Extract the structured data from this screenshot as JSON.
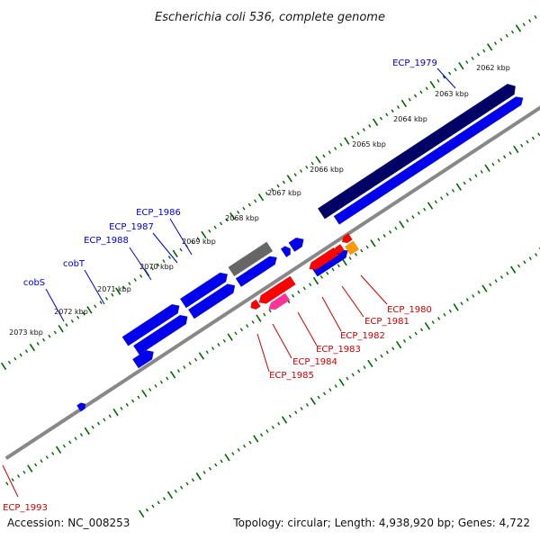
{
  "title": "Escherichia coli 536, complete genome",
  "footer": {
    "accession": "Accession: NC_008253",
    "summary": "Topology: circular; Length: 4,938,920 bp; Genes: 4,722"
  },
  "colors": {
    "forward_gene": "#0000ee",
    "forward_label": "#0000cc",
    "reverse_gene": "#ff0000",
    "reverse_label": "#cc0000",
    "rna_gene": "#ff3399",
    "pseudo_gene": "#ff9900",
    "dark_feature": "#000066",
    "grey_feature": "#666666",
    "backbone": "#888888",
    "tick": "#006600"
  },
  "scale_labels": [
    "2062 kbp",
    "2063 kbp",
    "2064 kbp",
    "2065 kbp",
    "2066 kbp",
    "2067 kbp",
    "2068 kbp",
    "2069 kbp",
    "2070 kbp",
    "2071 kbp",
    "2072 kbp",
    "2073 kbp"
  ],
  "forward_labels": [
    {
      "id": "ECP_1979",
      "text": "ECP_1979"
    },
    {
      "id": "ECP_1986",
      "text": "ECP_1986"
    },
    {
      "id": "ECP_1987",
      "text": "ECP_1987"
    },
    {
      "id": "ECP_1988",
      "text": "ECP_1988"
    },
    {
      "id": "cobT",
      "text": "cobT"
    },
    {
      "id": "cobS",
      "text": "cobS"
    }
  ],
  "reverse_labels": [
    {
      "id": "ECP_1980",
      "text": "ECP_1980"
    },
    {
      "id": "ECP_1981",
      "text": "ECP_1981"
    },
    {
      "id": "ECP_1982",
      "text": "ECP_1982"
    },
    {
      "id": "ECP_1983",
      "text": "ECP_1983"
    },
    {
      "id": "ECP_1984",
      "text": "ECP_1984"
    },
    {
      "id": "ECP_1985",
      "text": "ECP_1985"
    },
    {
      "id": "ECP_1993",
      "text": "ECP_1993"
    }
  ]
}
